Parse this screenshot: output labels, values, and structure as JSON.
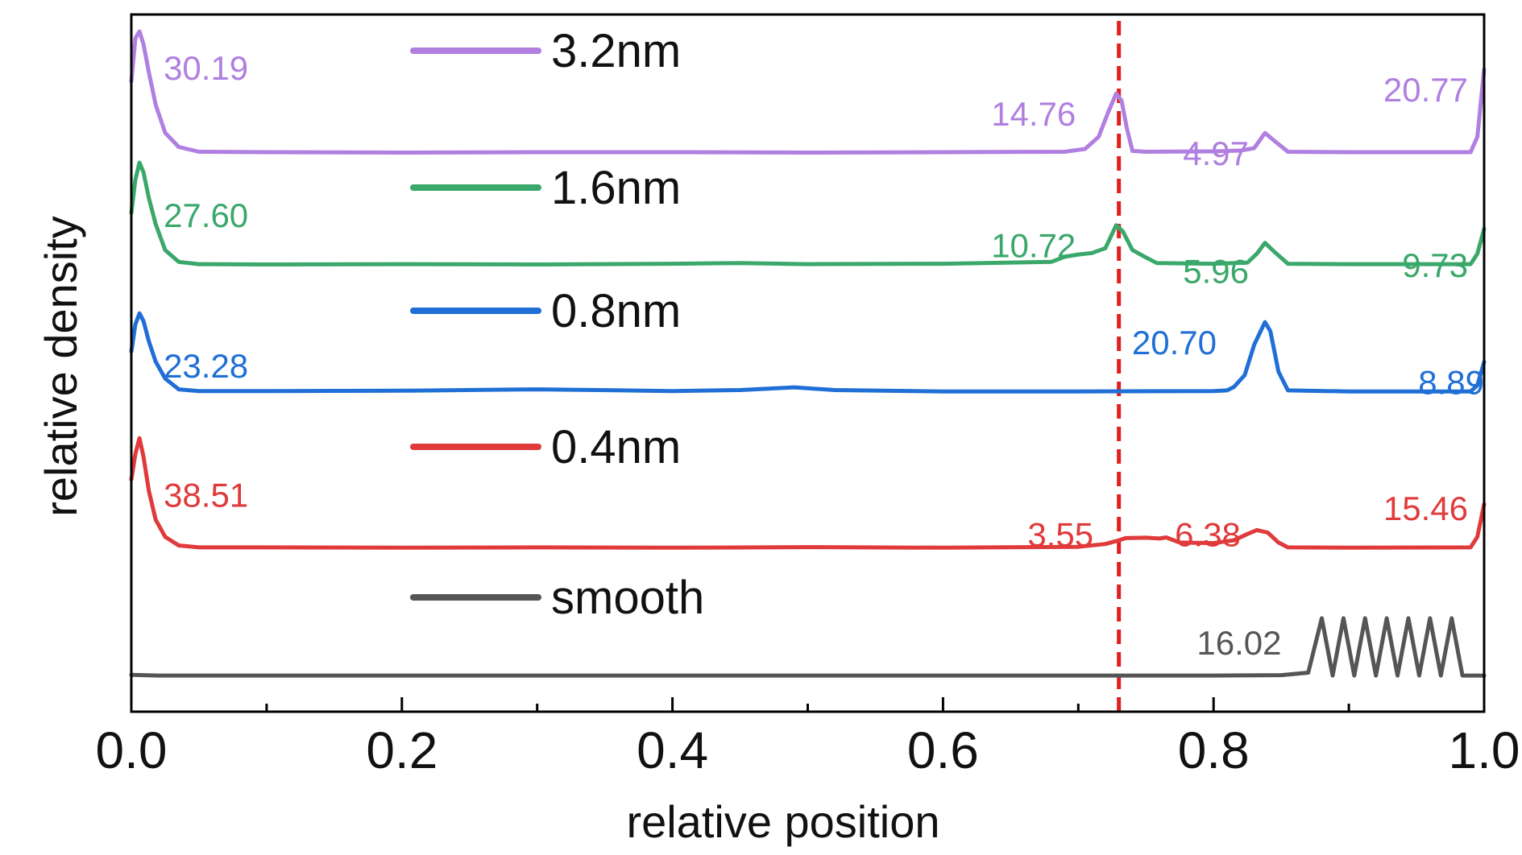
{
  "chart_data": {
    "type": "line",
    "xlabel": "relative position",
    "ylabel": "relative density",
    "xlim": [
      0.0,
      1.0
    ],
    "x_ticks": [
      0.0,
      0.2,
      0.4,
      0.6,
      0.8,
      1.0
    ],
    "x_tick_labels": [
      "0.0",
      "0.2",
      "0.4",
      "0.6",
      "0.8",
      "1.0"
    ],
    "y_ticks_shown": false,
    "grid": false,
    "legend_placement": "upper-left-center",
    "reference_line": {
      "x": 0.73,
      "color": "#e02020",
      "style": "dashed"
    },
    "series": [
      {
        "name": "3.2nm",
        "color": "#b07fe0",
        "points": [
          [
            0.0,
            17.8
          ],
          [
            0.003,
            28.5
          ],
          [
            0.006,
            30.19
          ],
          [
            0.009,
            27.0
          ],
          [
            0.013,
            20.0
          ],
          [
            0.018,
            12.0
          ],
          [
            0.025,
            5.0
          ],
          [
            0.035,
            1.5
          ],
          [
            0.05,
            0.3
          ],
          [
            0.1,
            0.2
          ],
          [
            0.2,
            0.1
          ],
          [
            0.3,
            0.2
          ],
          [
            0.4,
            0.2
          ],
          [
            0.5,
            0.1
          ],
          [
            0.6,
            0.2
          ],
          [
            0.69,
            0.3
          ],
          [
            0.705,
            1.0
          ],
          [
            0.715,
            4.0
          ],
          [
            0.722,
            10.0
          ],
          [
            0.728,
            14.76
          ],
          [
            0.732,
            13.0
          ],
          [
            0.736,
            6.0
          ],
          [
            0.74,
            0.5
          ],
          [
            0.75,
            0.3
          ],
          [
            0.8,
            0.4
          ],
          [
            0.82,
            0.6
          ],
          [
            0.83,
            1.2
          ],
          [
            0.838,
            4.97
          ],
          [
            0.845,
            3.0
          ],
          [
            0.855,
            0.3
          ],
          [
            0.9,
            0.2
          ],
          [
            0.99,
            0.2
          ],
          [
            0.995,
            4.0
          ],
          [
            1.0,
            20.77
          ]
        ],
        "peak_labels": [
          {
            "x": 0.006,
            "value": "30.19"
          },
          {
            "x": 0.728,
            "value": "14.76"
          },
          {
            "x": 0.838,
            "value": "4.97"
          },
          {
            "x": 1.0,
            "value": "20.77"
          }
        ]
      },
      {
        "name": "1.6nm",
        "color": "#3aa86a",
        "points": [
          [
            0.0,
            14.0
          ],
          [
            0.003,
            23.0
          ],
          [
            0.006,
            27.6
          ],
          [
            0.009,
            25.0
          ],
          [
            0.013,
            18.0
          ],
          [
            0.018,
            11.0
          ],
          [
            0.025,
            4.0
          ],
          [
            0.035,
            0.8
          ],
          [
            0.05,
            0.2
          ],
          [
            0.1,
            0.1
          ],
          [
            0.2,
            0.2
          ],
          [
            0.3,
            0.1
          ],
          [
            0.4,
            0.3
          ],
          [
            0.45,
            0.5
          ],
          [
            0.5,
            0.2
          ],
          [
            0.6,
            0.3
          ],
          [
            0.68,
            0.8
          ],
          [
            0.69,
            2.2
          ],
          [
            0.7,
            2.8
          ],
          [
            0.71,
            3.2
          ],
          [
            0.72,
            4.5
          ],
          [
            0.728,
            10.72
          ],
          [
            0.733,
            9.0
          ],
          [
            0.74,
            4.0
          ],
          [
            0.75,
            2.0
          ],
          [
            0.758,
            0.5
          ],
          [
            0.8,
            0.3
          ],
          [
            0.825,
            0.6
          ],
          [
            0.832,
            3.0
          ],
          [
            0.838,
            5.96
          ],
          [
            0.845,
            3.5
          ],
          [
            0.855,
            0.3
          ],
          [
            0.9,
            0.2
          ],
          [
            0.99,
            0.2
          ],
          [
            0.995,
            3.0
          ],
          [
            1.0,
            9.73
          ]
        ],
        "peak_labels": [
          {
            "x": 0.006,
            "value": "27.60"
          },
          {
            "x": 0.728,
            "value": "10.72"
          },
          {
            "x": 0.838,
            "value": "5.96"
          },
          {
            "x": 1.0,
            "value": "9.73"
          }
        ]
      },
      {
        "name": "0.8nm",
        "color": "#1f6fd6",
        "points": [
          [
            0.0,
            12.0
          ],
          [
            0.003,
            20.0
          ],
          [
            0.006,
            23.28
          ],
          [
            0.009,
            21.0
          ],
          [
            0.013,
            15.0
          ],
          [
            0.018,
            9.0
          ],
          [
            0.025,
            4.0
          ],
          [
            0.035,
            0.8
          ],
          [
            0.05,
            0.3
          ],
          [
            0.1,
            0.3
          ],
          [
            0.2,
            0.4
          ],
          [
            0.3,
            0.8
          ],
          [
            0.4,
            0.3
          ],
          [
            0.45,
            0.6
          ],
          [
            0.49,
            1.4
          ],
          [
            0.52,
            0.6
          ],
          [
            0.6,
            0.2
          ],
          [
            0.7,
            0.2
          ],
          [
            0.8,
            0.3
          ],
          [
            0.81,
            0.5
          ],
          [
            0.815,
            1.5
          ],
          [
            0.823,
            5.0
          ],
          [
            0.83,
            14.0
          ],
          [
            0.838,
            20.7
          ],
          [
            0.842,
            18.0
          ],
          [
            0.848,
            6.0
          ],
          [
            0.855,
            0.5
          ],
          [
            0.9,
            0.2
          ],
          [
            0.99,
            0.2
          ],
          [
            0.995,
            2.0
          ],
          [
            1.0,
            8.89
          ]
        ],
        "peak_labels": [
          {
            "x": 0.006,
            "value": "23.28"
          },
          {
            "x": 0.838,
            "value": "20.70"
          },
          {
            "x": 1.0,
            "value": "8.89"
          }
        ]
      },
      {
        "name": "0.4nm",
        "color": "#e03a3a",
        "points": [
          [
            0.0,
            24.0
          ],
          [
            0.003,
            33.0
          ],
          [
            0.006,
            38.51
          ],
          [
            0.009,
            32.0
          ],
          [
            0.013,
            20.0
          ],
          [
            0.018,
            10.0
          ],
          [
            0.025,
            4.0
          ],
          [
            0.035,
            1.0
          ],
          [
            0.05,
            0.3
          ],
          [
            0.1,
            0.3
          ],
          [
            0.2,
            0.2
          ],
          [
            0.3,
            0.3
          ],
          [
            0.4,
            0.2
          ],
          [
            0.5,
            0.4
          ],
          [
            0.6,
            0.2
          ],
          [
            0.7,
            0.5
          ],
          [
            0.72,
            1.5
          ],
          [
            0.728,
            2.5
          ],
          [
            0.735,
            3.55
          ],
          [
            0.75,
            3.7
          ],
          [
            0.76,
            3.4
          ],
          [
            0.765,
            3.8
          ],
          [
            0.775,
            2.0
          ],
          [
            0.8,
            1.8
          ],
          [
            0.815,
            2.8
          ],
          [
            0.825,
            5.0
          ],
          [
            0.832,
            6.38
          ],
          [
            0.84,
            5.5
          ],
          [
            0.848,
            2.0
          ],
          [
            0.855,
            0.3
          ],
          [
            0.9,
            0.2
          ],
          [
            0.99,
            0.3
          ],
          [
            0.995,
            4.0
          ],
          [
            1.0,
            15.46
          ]
        ],
        "peak_labels": [
          {
            "x": 0.006,
            "value": "38.51"
          },
          {
            "x": 0.735,
            "value": "3.55"
          },
          {
            "x": 0.832,
            "value": "6.38"
          },
          {
            "x": 1.0,
            "value": "15.46"
          }
        ]
      },
      {
        "name": "smooth",
        "color": "#555555",
        "points": [
          [
            0.0,
            0.4
          ],
          [
            0.02,
            0.2
          ],
          [
            0.2,
            0.2
          ],
          [
            0.4,
            0.2
          ],
          [
            0.6,
            0.2
          ],
          [
            0.8,
            0.2
          ],
          [
            0.85,
            0.3
          ],
          [
            0.87,
            1.0
          ],
          [
            0.88,
            16.02
          ],
          [
            0.888,
            0.2
          ],
          [
            0.896,
            16.02
          ],
          [
            0.904,
            0.2
          ],
          [
            0.912,
            16.02
          ],
          [
            0.92,
            0.2
          ],
          [
            0.928,
            16.02
          ],
          [
            0.936,
            0.2
          ],
          [
            0.944,
            16.02
          ],
          [
            0.952,
            0.2
          ],
          [
            0.96,
            16.02
          ],
          [
            0.968,
            0.2
          ],
          [
            0.976,
            16.02
          ],
          [
            0.984,
            0.2
          ],
          [
            1.0,
            0.2
          ]
        ],
        "peak_labels": [
          {
            "x": 0.88,
            "value": "16.02"
          }
        ]
      }
    ]
  }
}
